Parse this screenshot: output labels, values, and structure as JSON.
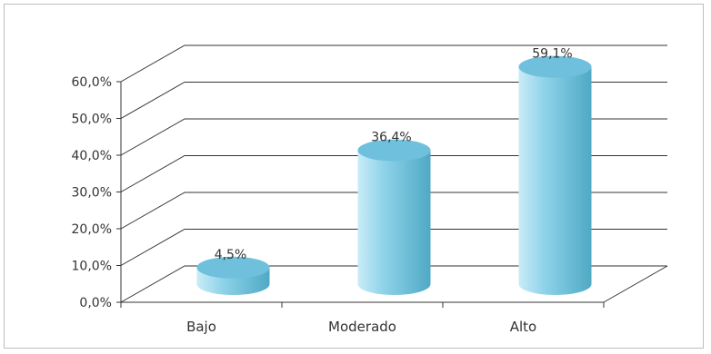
{
  "chart_data": {
    "type": "bar",
    "style": "3d-cylinder",
    "categories": [
      "Bajo",
      "Moderado",
      "Alto"
    ],
    "values": [
      4.5,
      36.4,
      59.1
    ],
    "data_labels": [
      "4,5%",
      "36,4%",
      "59,1%"
    ],
    "y_ticks": [
      "0,0%",
      "10,0%",
      "20,0%",
      "30,0%",
      "40,0%",
      "50,0%",
      "60,0%"
    ],
    "ylim": [
      0,
      60
    ],
    "title": "",
    "xlabel": "",
    "ylabel": "",
    "grid": true,
    "legend": "none",
    "colors": {
      "bar_light": "#c9ecf7",
      "bar_mid": "#8fd3ea",
      "bar_dark": "#4fa9c4",
      "bar_top": "#6fc0dc",
      "grid": "#333333"
    }
  }
}
